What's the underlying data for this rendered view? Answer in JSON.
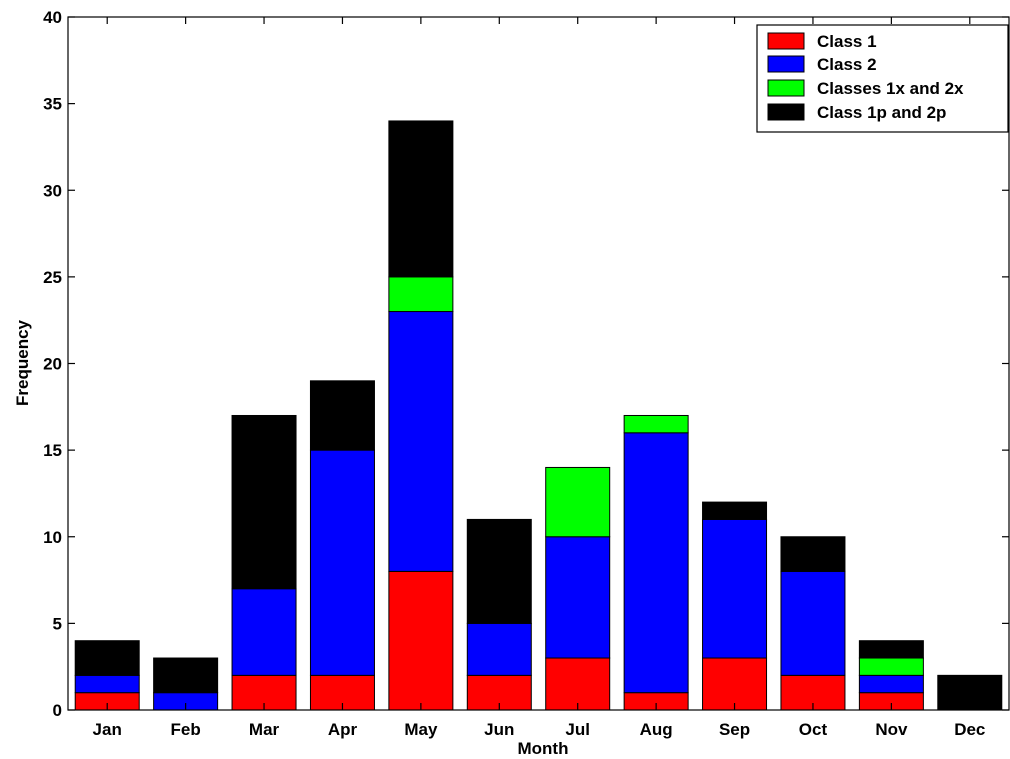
{
  "chart_data": {
    "type": "bar",
    "stacked": true,
    "categories": [
      "Jan",
      "Feb",
      "Mar",
      "Apr",
      "May",
      "Jun",
      "Jul",
      "Aug",
      "Sep",
      "Oct",
      "Nov",
      "Dec"
    ],
    "series": [
      {
        "name": "Class 1",
        "color": "#ff0000",
        "values": [
          1,
          0,
          2,
          2,
          8,
          2,
          3,
          1,
          3,
          2,
          1,
          0
        ]
      },
      {
        "name": "Class 2",
        "color": "#0000ff",
        "values": [
          1,
          1,
          5,
          13,
          15,
          3,
          7,
          15,
          8,
          6,
          1,
          0
        ]
      },
      {
        "name": "Classes 1x and 2x",
        "color": "#00ff00",
        "values": [
          0,
          0,
          0,
          0,
          2,
          0,
          4,
          1,
          0,
          0,
          1,
          0
        ]
      },
      {
        "name": "Class 1p and 2p",
        "color": "#000000",
        "values": [
          2,
          2,
          10,
          4,
          9,
          6,
          0,
          0,
          1,
          2,
          1,
          2
        ]
      }
    ],
    "xlabel": "Month",
    "ylabel": "Frequency",
    "ylim": [
      0,
      40
    ],
    "yticks": [
      0,
      5,
      10,
      15,
      20,
      25,
      30,
      35,
      40
    ],
    "grid": false,
    "legend_position": "top-right"
  }
}
